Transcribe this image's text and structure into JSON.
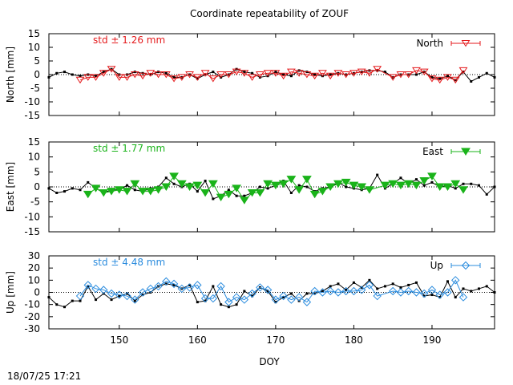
{
  "title": "Coordinate repeatability of ZOUF",
  "timestamp": "18/07/25 17:21",
  "chart_data": {
    "type": "line",
    "title": "Coordinate repeatability of ZOUF",
    "xlabel": "DOY",
    "xlim": [
      141,
      198
    ],
    "xticks": [
      150,
      160,
      170,
      180,
      190
    ],
    "panels": [
      {
        "id": "north",
        "ylabel": "North [mm]",
        "ylim": [
          -15,
          15
        ],
        "yticks": [
          -15,
          -10,
          -5,
          0,
          5,
          10,
          15
        ],
        "std_label": "std ± 1.26 mm",
        "legend": "North",
        "color": "#e41a1c",
        "marker": "triangle-down-open",
        "reference_series": {
          "x": [
            141,
            142,
            143,
            144,
            145,
            146,
            147,
            148,
            149,
            150,
            151,
            152,
            153,
            154,
            155,
            156,
            157,
            158,
            159,
            160,
            161,
            162,
            163,
            164,
            165,
            166,
            167,
            168,
            169,
            170,
            171,
            172,
            173,
            174,
            175,
            176,
            177,
            178,
            179,
            180,
            181,
            182,
            183,
            184,
            185,
            186,
            187,
            188,
            189,
            190,
            191,
            192,
            193,
            194,
            195,
            196,
            197,
            198
          ],
          "y": [
            -1,
            0.5,
            1,
            0,
            -0.5,
            0,
            -0.5,
            1,
            2,
            0,
            0,
            1,
            0.5,
            0,
            1,
            0.5,
            -1,
            -1,
            0,
            -1.5,
            0,
            1,
            -1,
            0,
            2,
            1,
            0.5,
            -1,
            -0.5,
            1,
            0,
            -0.5,
            1.5,
            1,
            0,
            -0.5,
            0,
            0.5,
            0,
            0.5,
            1,
            1.5,
            1.5,
            1,
            -1,
            0,
            0,
            0,
            1,
            -1,
            -1.5,
            -0.5,
            -2,
            1,
            -2.5,
            -1,
            0.5,
            -1
          ]
        },
        "series": {
          "name": "North",
          "x": [
            145,
            146,
            147,
            148,
            149,
            150,
            151,
            152,
            153,
            154,
            155,
            156,
            157,
            158,
            159,
            160,
            161,
            162,
            163,
            164,
            165,
            166,
            167,
            168,
            169,
            170,
            171,
            172,
            173,
            174,
            175,
            176,
            177,
            178,
            179,
            180,
            181,
            182,
            183,
            185,
            186,
            187,
            188,
            189,
            190,
            191,
            192,
            193,
            194
          ],
          "y": [
            -2,
            -1,
            -1,
            0.5,
            2,
            -1,
            -1,
            0,
            -0.5,
            0.5,
            0,
            0,
            -1.5,
            -1,
            0,
            -1,
            0.5,
            -1.5,
            0,
            0,
            1,
            0.5,
            -1,
            0,
            0.5,
            0.5,
            -0.5,
            1,
            0.5,
            0,
            -0.5,
            0.5,
            -0.5,
            0.5,
            0,
            0.5,
            1,
            0.5,
            2,
            -1,
            0,
            0,
            1.5,
            1,
            -1.5,
            -2,
            -1,
            -2,
            1.5
          ]
        }
      },
      {
        "id": "east",
        "ylabel": "East [mm]",
        "ylim": [
          -15,
          15
        ],
        "yticks": [
          -15,
          -10,
          -5,
          0,
          5,
          10,
          15
        ],
        "std_label": "std ± 1.77 mm",
        "legend": "East",
        "color": "#1ab31a",
        "marker": "triangle-down-filled",
        "reference_series": {
          "x": [
            141,
            142,
            143,
            144,
            145,
            146,
            147,
            148,
            149,
            150,
            151,
            152,
            153,
            154,
            155,
            156,
            157,
            158,
            159,
            160,
            161,
            162,
            163,
            164,
            165,
            166,
            167,
            168,
            169,
            170,
            171,
            172,
            173,
            174,
            175,
            176,
            177,
            178,
            179,
            180,
            181,
            182,
            183,
            184,
            185,
            186,
            187,
            188,
            189,
            190,
            191,
            192,
            193,
            194,
            195,
            196,
            197,
            198
          ],
          "y": [
            -0.5,
            -2,
            -1.5,
            -0.5,
            -1,
            1.5,
            -0.5,
            -2,
            -1,
            -1,
            0.5,
            -1,
            -1.5,
            -0.5,
            0,
            3,
            1,
            0,
            1,
            -1.5,
            2,
            -4,
            -3,
            -1,
            -3,
            -3,
            -2,
            0,
            -0.5,
            0.5,
            2,
            -2,
            0.5,
            0,
            -1.5,
            -0.5,
            0,
            1.5,
            0,
            -0.5,
            -1,
            -0.5,
            4,
            -0.5,
            1,
            3,
            1,
            2.5,
            0.5,
            1.5,
            0,
            0.5,
            -0.5,
            1,
            1,
            0.5,
            -2.5,
            0
          ]
        },
        "series": {
          "name": "East",
          "x": [
            146,
            147,
            148,
            149,
            150,
            151,
            152,
            153,
            154,
            155,
            156,
            157,
            158,
            159,
            160,
            161,
            162,
            163,
            164,
            165,
            166,
            167,
            168,
            169,
            170,
            171,
            172,
            173,
            174,
            175,
            176,
            177,
            178,
            179,
            180,
            181,
            182,
            184,
            185,
            186,
            187,
            188,
            189,
            190,
            191,
            192,
            193,
            194
          ],
          "y": [
            -2.5,
            -0.5,
            -2,
            -1.5,
            -1,
            -1.5,
            1,
            -1.5,
            -1.5,
            -1,
            0,
            3.5,
            1,
            0,
            0.5,
            -2,
            1,
            -3.5,
            -2.5,
            -0.5,
            -4.5,
            -2,
            -2,
            1,
            0.5,
            1,
            2.5,
            -1,
            2.5,
            -2.5,
            -1.5,
            0,
            1,
            1.5,
            0.5,
            0,
            -1,
            0.5,
            1,
            0.5,
            1,
            0.5,
            2,
            3.5,
            0,
            0,
            1,
            -1
          ]
        }
      },
      {
        "id": "up",
        "ylabel": "Up [mm]",
        "ylim": [
          -30,
          30
        ],
        "yticks": [
          -30,
          -20,
          -10,
          0,
          10,
          20,
          30
        ],
        "std_label": "std ± 4.48 mm",
        "legend": "Up",
        "color": "#2b8cde",
        "marker": "diamond-open",
        "reference_series": {
          "x": [
            141,
            142,
            143,
            144,
            145,
            146,
            147,
            148,
            149,
            150,
            151,
            152,
            153,
            154,
            155,
            156,
            157,
            158,
            159,
            160,
            161,
            162,
            163,
            164,
            165,
            166,
            167,
            168,
            169,
            170,
            171,
            172,
            173,
            174,
            175,
            176,
            177,
            178,
            179,
            180,
            181,
            182,
            183,
            184,
            185,
            186,
            187,
            188,
            189,
            190,
            191,
            192,
            193,
            194,
            195,
            196,
            197,
            198
          ],
          "y": [
            -4,
            -10,
            -12,
            -7,
            -7,
            5,
            -6,
            -1,
            -6,
            -3,
            -1,
            -7,
            -2,
            0,
            5,
            7,
            6,
            3,
            6,
            -8,
            -7,
            5,
            -10,
            -12,
            -10,
            1,
            -3,
            4,
            1,
            -8,
            -4,
            -1,
            -7,
            -1,
            -1,
            1,
            5,
            7,
            2,
            8,
            4,
            10,
            3,
            5,
            7,
            4,
            6,
            8,
            -3,
            -2,
            -4,
            9,
            -4,
            3,
            1,
            3,
            5,
            0
          ]
        },
        "series": {
          "name": "Up",
          "x": [
            145,
            146,
            147,
            148,
            149,
            150,
            151,
            152,
            153,
            154,
            155,
            156,
            157,
            158,
            159,
            160,
            161,
            162,
            163,
            164,
            165,
            166,
            167,
            168,
            169,
            170,
            171,
            172,
            173,
            174,
            175,
            176,
            177,
            178,
            179,
            180,
            181,
            182,
            183,
            185,
            186,
            187,
            188,
            189,
            190,
            191,
            192,
            193,
            194
          ],
          "y": [
            -3,
            6,
            3,
            2,
            -1,
            -2,
            -3,
            -6,
            0,
            3,
            5,
            9,
            7,
            3,
            4,
            6,
            -5,
            -5,
            5,
            -8,
            -4,
            -6,
            -1,
            4,
            2,
            -6,
            -3,
            -6,
            -4,
            -8,
            1,
            0,
            1,
            0,
            1,
            1,
            2,
            6,
            -3,
            1,
            0,
            1,
            0,
            -1,
            2,
            -2,
            0,
            10,
            -4
          ]
        }
      }
    ]
  }
}
